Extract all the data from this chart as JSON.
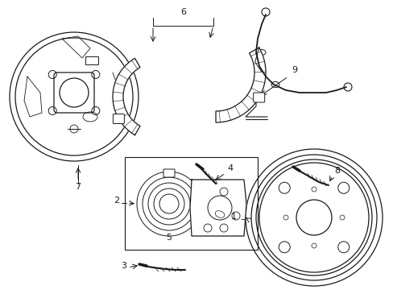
{
  "background_color": "#ffffff",
  "line_color": "#1a1a1a",
  "figw": 4.89,
  "figh": 3.6,
  "dpi": 100
}
